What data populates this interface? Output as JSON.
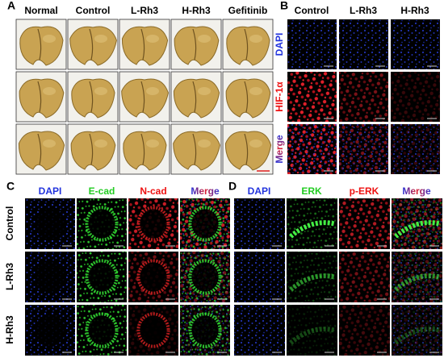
{
  "panels": {
    "A": {
      "label": "A",
      "columns": [
        "Normal",
        "Control",
        "L-Rh3",
        "H-Rh3",
        "Gefitinib"
      ]
    },
    "B": {
      "label": "B",
      "columns": [
        "Control",
        "L-Rh3",
        "H-Rh3"
      ],
      "rows": [
        "DAPI",
        "HIF-1α",
        "Merge"
      ]
    },
    "C": {
      "label": "C",
      "columns": [
        "DAPI",
        "E-cad",
        "N-cad",
        "Merge"
      ],
      "rows": [
        "Control",
        "L-Rh3",
        "H-Rh3"
      ]
    },
    "D": {
      "label": "D",
      "columns": [
        "DAPI",
        "ERK",
        "p-ERK",
        "Merge"
      ]
    }
  }
}
